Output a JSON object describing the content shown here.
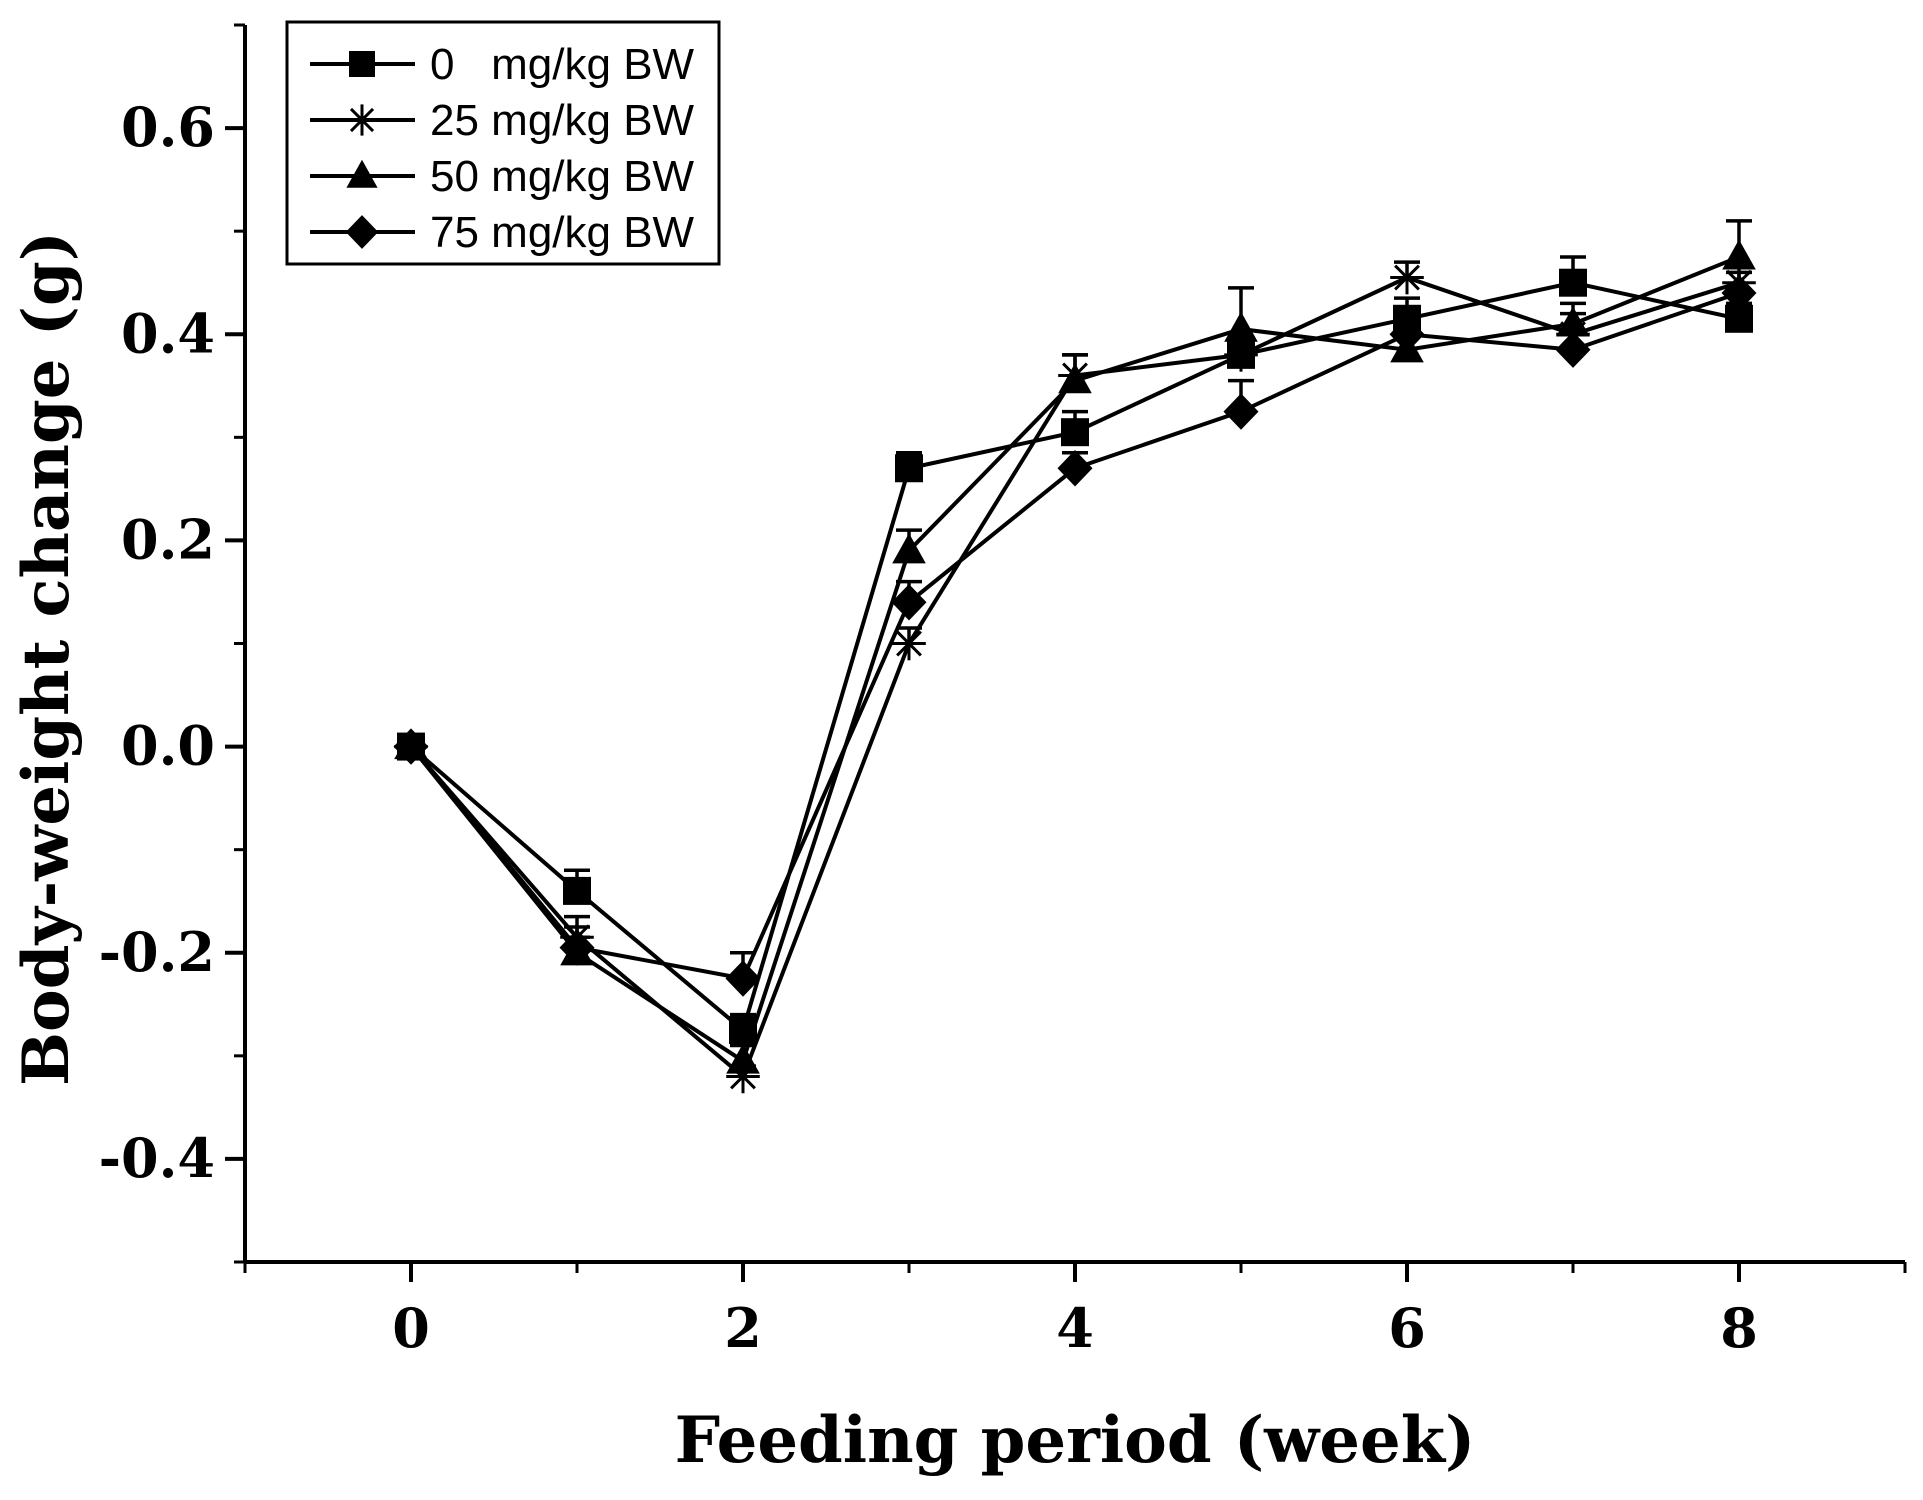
{
  "chart_data": {
    "type": "line",
    "title": "",
    "xlabel": "Feeding period (week)",
    "ylabel": "Body-weight change (g)",
    "xlim": [
      -1,
      9
    ],
    "ylim": [
      -0.5,
      0.7
    ],
    "x_ticks": [
      0,
      2,
      4,
      6,
      8
    ],
    "x_tick_labels": [
      "0",
      "2",
      "4",
      "6",
      "8"
    ],
    "x_minor_ticks": [
      -1,
      1,
      3,
      5,
      7,
      9
    ],
    "y_ticks": [
      -0.4,
      -0.2,
      0.0,
      0.2,
      0.4,
      0.6
    ],
    "y_tick_labels": [
      "-0.4",
      "-0.2",
      "0.0",
      "0.2",
      "0.4",
      "0.6"
    ],
    "y_minor_ticks": [
      -0.5,
      -0.3,
      -0.1,
      0.1,
      0.3,
      0.5,
      0.7
    ],
    "grid": false,
    "legend_position": "top-left",
    "x": [
      0,
      1,
      2,
      3,
      4,
      5,
      6,
      7,
      8
    ],
    "series": [
      {
        "name": "0   mg/kg BW",
        "marker": "square",
        "values": [
          0.0,
          -0.14,
          -0.275,
          0.27,
          0.305,
          0.38,
          0.415,
          0.45,
          0.415
        ],
        "errors": [
          0.0,
          0.02,
          0.015,
          0.015,
          0.02,
          0.015,
          0.02,
          0.025,
          0.015
        ]
      },
      {
        "name": "25 mg/kg BW",
        "marker": "asterisk",
        "values": [
          0.0,
          -0.185,
          -0.32,
          0.1,
          0.36,
          0.38,
          0.455,
          0.4,
          0.45
        ],
        "errors": [
          0.0,
          0.02,
          0.01,
          0.015,
          0.02,
          0.015,
          0.015,
          0.02,
          0.015
        ]
      },
      {
        "name": "50 mg/kg BW",
        "marker": "triangle",
        "values": [
          0.0,
          -0.2,
          -0.305,
          0.19,
          0.355,
          0.405,
          0.385,
          0.41,
          0.475
        ],
        "errors": [
          0.0,
          0.015,
          0.015,
          0.02,
          0.025,
          0.04,
          0.015,
          0.02,
          0.035
        ]
      },
      {
        "name": "75 mg/kg BW",
        "marker": "diamond",
        "values": [
          0.0,
          -0.195,
          -0.225,
          0.14,
          0.27,
          0.325,
          0.4,
          0.385,
          0.44
        ],
        "errors": [
          0.0,
          0.02,
          0.025,
          0.02,
          0.015,
          0.03,
          0.015,
          0.015,
          0.02
        ]
      }
    ]
  }
}
